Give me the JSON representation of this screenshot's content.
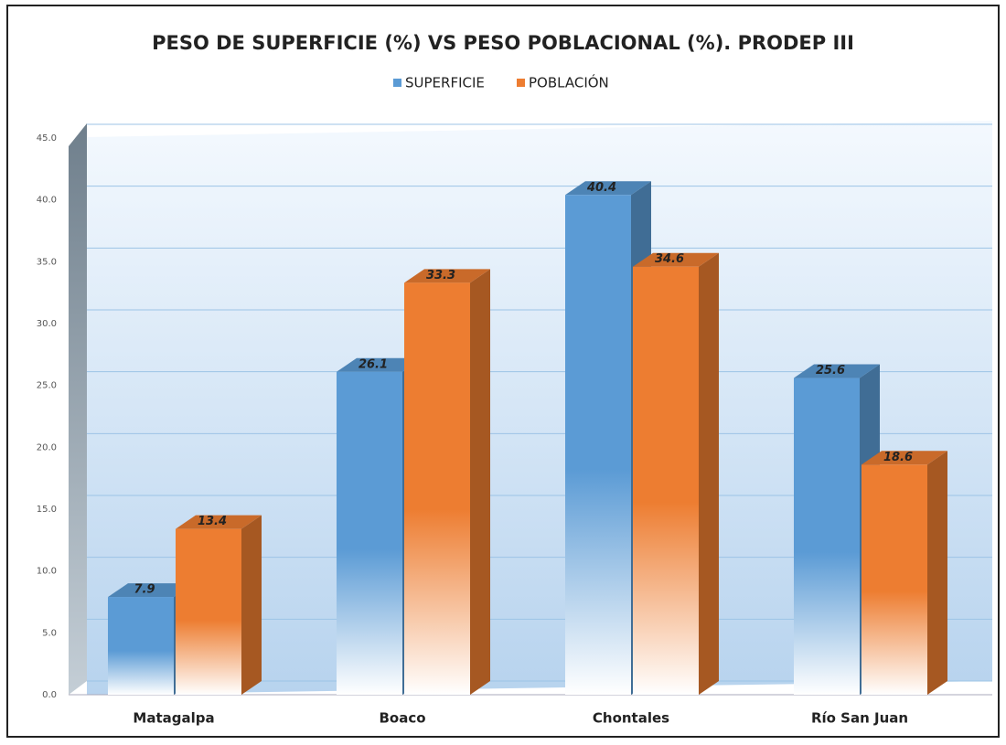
{
  "chart_data": {
    "type": "bar3d",
    "title": "PESO DE SUPERFICIE (%) VS PESO POBLACIONAL (%). PRODEP III",
    "categories": [
      "Matagalpa",
      "Boaco",
      "Chontales",
      "Río San Juan"
    ],
    "series": [
      {
        "name": "SUPERFICIE",
        "color": "#5b9bd5",
        "values": [
          7.9,
          26.1,
          40.4,
          25.6
        ]
      },
      {
        "name": "POBLACIÓN",
        "color": "#ed7d31",
        "values": [
          13.4,
          33.3,
          34.6,
          18.6
        ]
      }
    ],
    "ylim": [
      0,
      45
    ],
    "yticks": [
      {
        "value": 0,
        "label": "0.0"
      },
      {
        "value": 5,
        "label": "5.0"
      },
      {
        "value": 10,
        "label": "10.0"
      },
      {
        "value": 15,
        "label": "15.0"
      },
      {
        "value": 20,
        "label": "20.0"
      },
      {
        "value": 25,
        "label": "25.0"
      },
      {
        "value": 30,
        "label": "30.0"
      },
      {
        "value": 35,
        "label": "35.0"
      },
      {
        "value": 40,
        "label": "40.0"
      },
      {
        "value": 45,
        "label": "45.0"
      }
    ],
    "grid": true,
    "legend": "top"
  }
}
